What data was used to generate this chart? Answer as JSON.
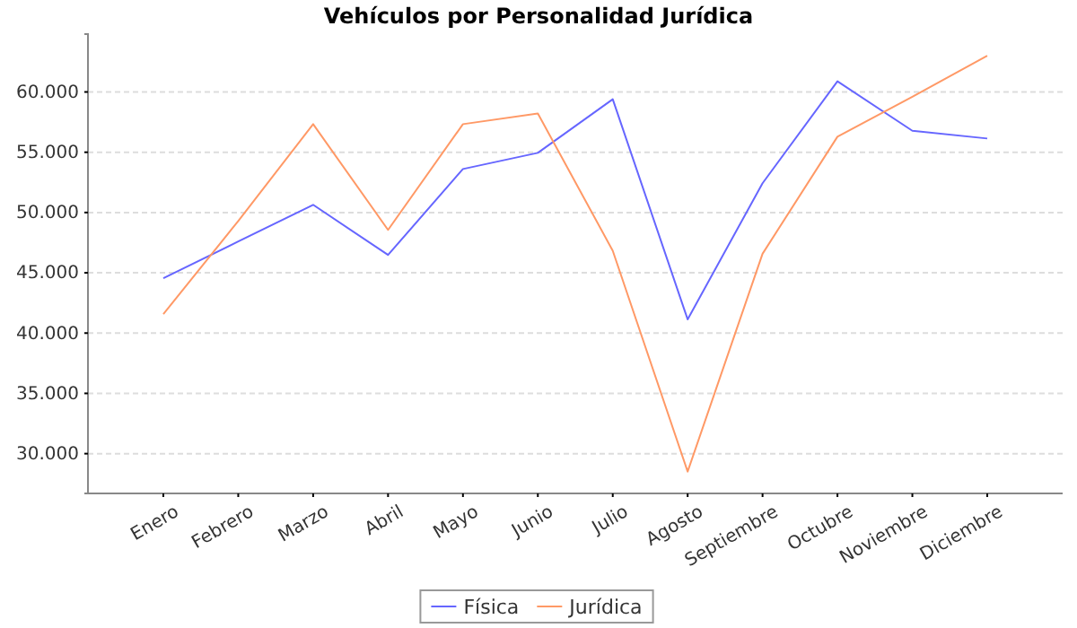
{
  "chart_data": {
    "type": "line",
    "title": "Vehículos por Personalidad Jurídica",
    "categories": [
      "Enero",
      "Febrero",
      "Marzo",
      "Abril",
      "Mayo",
      "Junio",
      "Julio",
      "Agosto",
      "Septiembre",
      "Octubre",
      "Noviembre",
      "Diciembre"
    ],
    "series": [
      {
        "name": "Física",
        "color": "#6666ff",
        "values": [
          44550,
          47600,
          50640,
          46480,
          53610,
          54950,
          59400,
          41140,
          52430,
          60890,
          56780,
          56140
        ]
      },
      {
        "name": "Jurídica",
        "color": "#ff9966",
        "values": [
          41580,
          49300,
          57330,
          48560,
          57330,
          58220,
          46830,
          28510,
          46580,
          56290,
          59600,
          63010
        ]
      }
    ],
    "ylim": [
      26700,
      64800
    ],
    "yticks": [
      {
        "value": 30000,
        "label": "30.000"
      },
      {
        "value": 35000,
        "label": "35.000"
      },
      {
        "value": 40000,
        "label": "40.000"
      },
      {
        "value": 45000,
        "label": "45.000"
      },
      {
        "value": 50000,
        "label": "50.000"
      },
      {
        "value": 55000,
        "label": "55.000"
      },
      {
        "value": 60000,
        "label": "60.000"
      }
    ],
    "grid": "y",
    "legend": "bottom",
    "marker": "none",
    "line_style": "solid"
  }
}
